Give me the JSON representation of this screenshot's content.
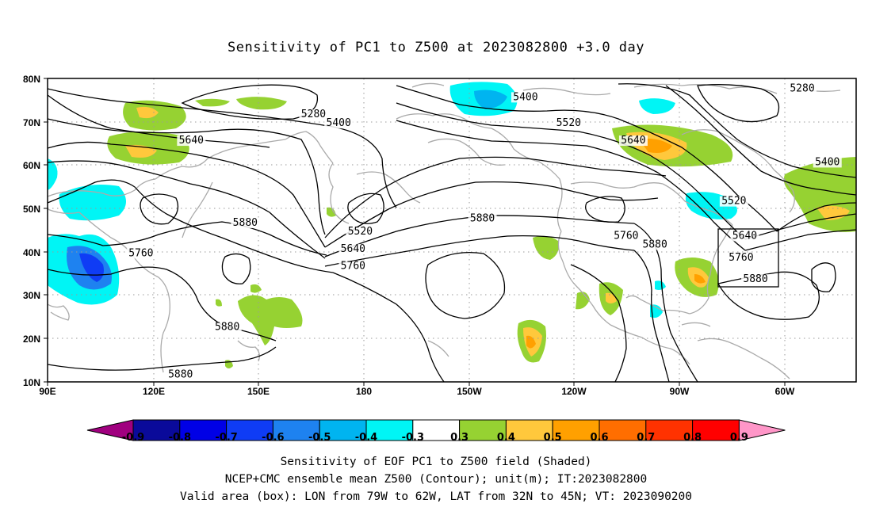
{
  "title": "Sensitivity of PC1 to Z500 at 2023082800 +3.0 day",
  "captions": [
    "Sensitivity of EOF PC1 to Z500 field (Shaded)",
    "NCEP+CMC ensemble mean Z500 (Contour); unit(m); IT:2023082800",
    "Valid area (box): LON from 79W to 62W, LAT from 32N to 45N; VT: 2023090200"
  ],
  "map": {
    "lon_labels": [
      "90E",
      "120E",
      "150E",
      "180",
      "150W",
      "120W",
      "90W",
      "60W"
    ],
    "lat_labels": [
      "10N",
      "20N",
      "30N",
      "40N",
      "50N",
      "60N",
      "70N",
      "80N"
    ]
  },
  "colorbar": {
    "colors": [
      "#a0007f",
      "#0a0a9a",
      "#0000e6",
      "#0f3cf5",
      "#1e82f0",
      "#00b4f0",
      "#00f5f5",
      "#ffffff",
      "#96d232",
      "#ffc83c",
      "#ffa000",
      "#ff6e00",
      "#ff3200",
      "#ff0000",
      "#ff96c8"
    ],
    "labels": [
      "-0.9",
      "-0.8",
      "-0.7",
      "-0.6",
      "-0.5",
      "-0.4",
      "-0.3",
      "0.3",
      "0.4",
      "0.5",
      "0.6",
      "0.7",
      "0.8",
      "0.9"
    ]
  },
  "contour_labels": [
    {
      "text": "5280",
      "lon": 164,
      "lat": 71
    },
    {
      "text": "5400",
      "lon": 171,
      "lat": 69
    },
    {
      "text": "5640",
      "lon": 130,
      "lat": 65
    },
    {
      "text": "5400",
      "lon": 223,
      "lat": 75
    },
    {
      "text": "5520",
      "lon": 235,
      "lat": 69
    },
    {
      "text": "5640",
      "lon": 253,
      "lat": 65
    },
    {
      "text": "5280",
      "lon": 300,
      "lat": 77
    },
    {
      "text": "5400",
      "lon": 307,
      "lat": 60
    },
    {
      "text": "5520",
      "lon": 281,
      "lat": 51
    },
    {
      "text": "5640",
      "lon": 284,
      "lat": 43
    },
    {
      "text": "5760",
      "lon": 283,
      "lat": 38
    },
    {
      "text": "5880",
      "lon": 287,
      "lat": 33
    },
    {
      "text": "5880",
      "lon": 145,
      "lat": 46
    },
    {
      "text": "5760",
      "lon": 116,
      "lat": 39
    },
    {
      "text": "5520",
      "lon": 177,
      "lat": 44
    },
    {
      "text": "5640",
      "lon": 175,
      "lat": 40
    },
    {
      "text": "5760",
      "lon": 175,
      "lat": 36
    },
    {
      "text": "5880",
      "lon": 211,
      "lat": 47
    },
    {
      "text": "5760",
      "lon": 251,
      "lat": 43
    },
    {
      "text": "5880",
      "lon": 259,
      "lat": 41
    },
    {
      "text": "5880",
      "lon": 140,
      "lat": 22
    },
    {
      "text": "5880",
      "lon": 127,
      "lat": 11
    }
  ]
}
